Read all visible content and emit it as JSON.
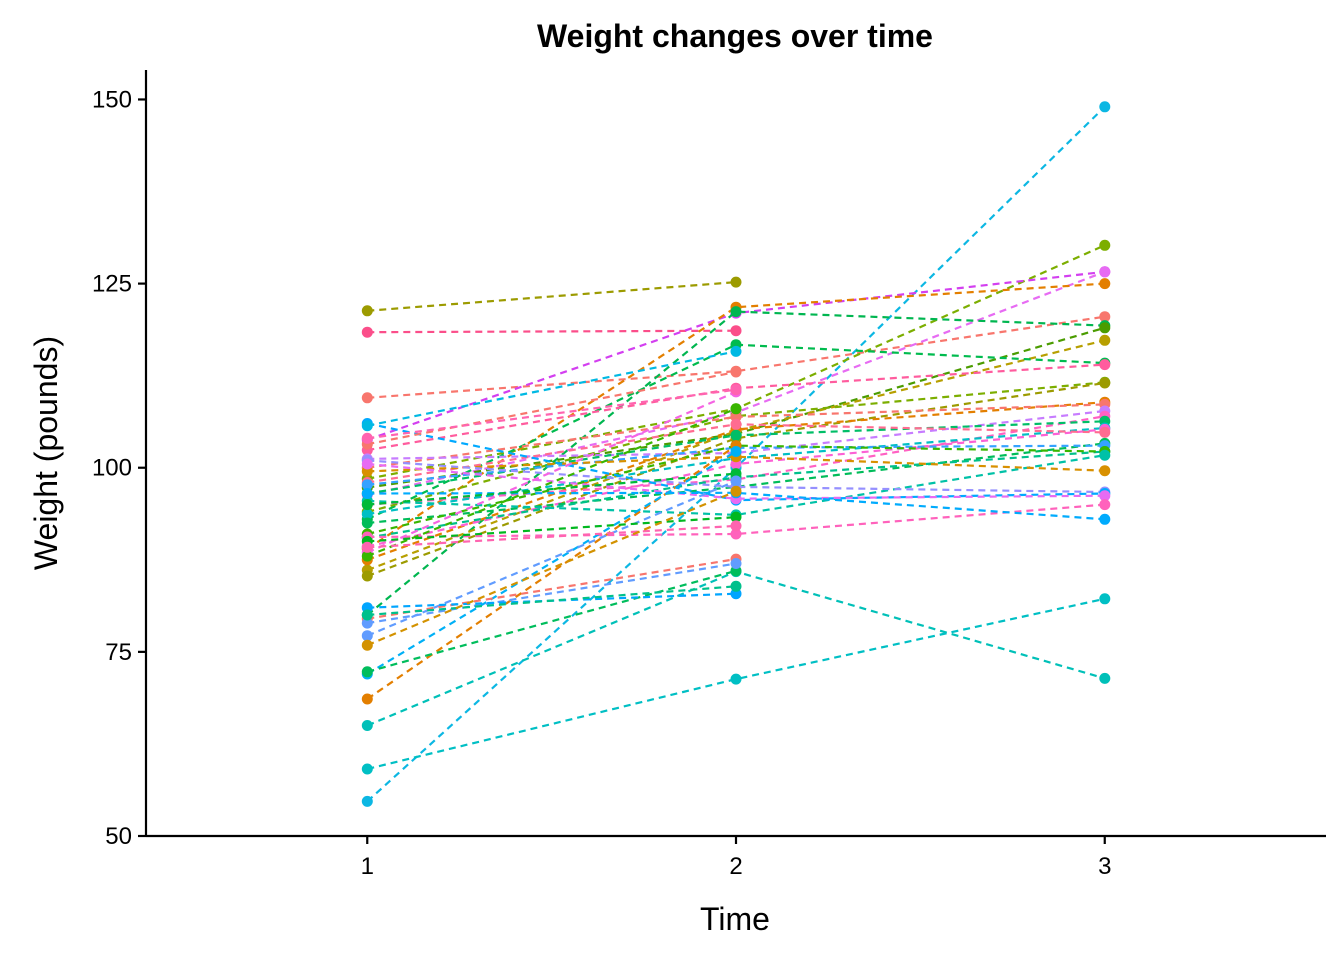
{
  "chart_data": {
    "type": "line",
    "title": "Weight changes over time",
    "xlabel": "Time",
    "ylabel": "Weight (pounds)",
    "x": [
      1,
      2,
      3
    ],
    "xlim": [
      0.4,
      3.6
    ],
    "ylim": [
      50,
      154
    ],
    "yticks": [
      50,
      75,
      100,
      125,
      150
    ],
    "xticks": [
      1,
      2,
      3
    ],
    "grid": false,
    "legend": "none",
    "line_style": "dashed",
    "series": [
      {
        "color": "#9C9B00",
        "values": [
          121.3,
          125.2,
          null
        ]
      },
      {
        "color": "#FB4E8A",
        "values": [
          118.4,
          118.6,
          null
        ]
      },
      {
        "color": "#F8766D",
        "values": [
          109.5,
          113.1,
          120.5
        ]
      },
      {
        "color": "#0CB7E3",
        "values": [
          54.7,
          100.0,
          149.0
        ]
      },
      {
        "color": "#7CAE00",
        "values": [
          98.5,
          108.0,
          130.2
        ]
      },
      {
        "color": "#D33FF0",
        "values": [
          103.8,
          121.0,
          126.6
        ]
      },
      {
        "color": "#E76BF3",
        "values": [
          96.3,
          107.5,
          126.6
        ]
      },
      {
        "color": "#E37F00",
        "values": [
          89.0,
          121.8,
          125.0
        ]
      },
      {
        "color": "#00B650",
        "values": [
          80.0,
          121.2,
          119.3
        ]
      },
      {
        "color": "#4B9C00",
        "values": [
          97.3,
          104.6,
          119.0
        ]
      },
      {
        "color": "#B79F00",
        "values": [
          86.1,
          105.0,
          117.3
        ]
      },
      {
        "color": "#00BB4E",
        "values": [
          93.0,
          116.7,
          114.2
        ]
      },
      {
        "color": "#FF5C9E",
        "values": [
          102.4,
          110.8,
          114.0
        ]
      },
      {
        "color": "#7CAE00",
        "values": [
          94.0,
          107.0,
          111.6
        ]
      },
      {
        "color": "#9C9B00",
        "values": [
          85.3,
          104.0,
          111.5
        ]
      },
      {
        "color": "#E37F00",
        "values": [
          87.5,
          105.2,
          108.9
        ]
      },
      {
        "color": "#F8766D",
        "values": [
          100.0,
          106.9,
          108.6
        ]
      },
      {
        "color": "#C77CFF",
        "values": [
          101.2,
          102.0,
          107.7
        ]
      },
      {
        "color": "#FF61C3",
        "values": [
          95.0,
          98.4,
          107.0
        ]
      },
      {
        "color": "#00BE67",
        "values": [
          96.5,
          104.4,
          106.3
        ]
      },
      {
        "color": "#00BFC4",
        "values": [
          93.7,
          101.3,
          105.4
        ]
      },
      {
        "color": "#FC61D5",
        "values": [
          89.3,
          100.5,
          105.2
        ]
      },
      {
        "color": "#FF6C91",
        "values": [
          98.0,
          105.9,
          104.8
        ]
      },
      {
        "color": "#00BC59",
        "values": [
          92.5,
          97.4,
          103.3
        ]
      },
      {
        "color": "#35A2FF",
        "values": [
          97.7,
          102.7,
          103.0
        ]
      },
      {
        "color": "#00C08B",
        "values": [
          90.5,
          98.7,
          102.2
        ]
      },
      {
        "color": "#39B600",
        "values": [
          91.0,
          103.0,
          102.2
        ]
      },
      {
        "color": "#00C1A7",
        "values": [
          95.5,
          93.6,
          101.7
        ]
      },
      {
        "color": "#D89000",
        "values": [
          99.5,
          101.5,
          99.6
        ]
      },
      {
        "color": "#9590FF",
        "values": [
          101.0,
          97.4,
          96.7
        ]
      },
      {
        "color": "#00A9FF",
        "values": [
          106.0,
          95.6,
          96.5
        ]
      },
      {
        "color": "#E76BF3",
        "values": [
          100.5,
          95.8,
          96.2
        ]
      },
      {
        "color": "#FF62BC",
        "values": [
          90.6,
          91.0,
          95.0
        ]
      },
      {
        "color": "#00ABFD",
        "values": [
          96.5,
          96.6,
          93.0
        ]
      },
      {
        "color": "#00C0B8",
        "values": [
          65.0,
          85.9,
          71.4
        ]
      },
      {
        "color": "#00BFC4",
        "values": [
          59.1,
          71.3,
          82.2
        ]
      },
      {
        "color": "#F8766D",
        "values": [
          103.2,
          113.0,
          null
        ]
      },
      {
        "color": "#00B9E3",
        "values": [
          105.7,
          115.8,
          null
        ]
      },
      {
        "color": "#F564E3",
        "values": [
          88.5,
          110.3,
          null
        ]
      },
      {
        "color": "#FF64B0",
        "values": [
          104.0,
          110.6,
          null
        ]
      },
      {
        "color": "#39B600",
        "values": [
          88.0,
          108.0,
          null
        ]
      },
      {
        "color": "#E37F00",
        "values": [
          68.6,
          103.0,
          null
        ]
      },
      {
        "color": "#00B0F6",
        "values": [
          72.0,
          102.2,
          null
        ]
      },
      {
        "color": "#00BA38",
        "values": [
          95.0,
          99.2,
          null
        ]
      },
      {
        "color": "#619CFF",
        "values": [
          77.2,
          98.2,
          null
        ]
      },
      {
        "color": "#00B81F",
        "values": [
          90.0,
          93.3,
          null
        ]
      },
      {
        "color": "#FF64B0",
        "values": [
          89.2,
          92.1,
          null
        ]
      },
      {
        "color": "#F8766D",
        "values": [
          79.5,
          87.6,
          null
        ]
      },
      {
        "color": "#00BD5C",
        "values": [
          72.3,
          86.0,
          null
        ]
      },
      {
        "color": "#619CFF",
        "values": [
          78.9,
          87.0,
          null
        ]
      },
      {
        "color": "#00A5FF",
        "values": [
          81.0,
          82.9,
          null
        ]
      },
      {
        "color": "#00C08B",
        "values": [
          80.0,
          83.9,
          null
        ]
      },
      {
        "color": "#D39200",
        "values": [
          75.9,
          96.8,
          null
        ]
      }
    ]
  }
}
